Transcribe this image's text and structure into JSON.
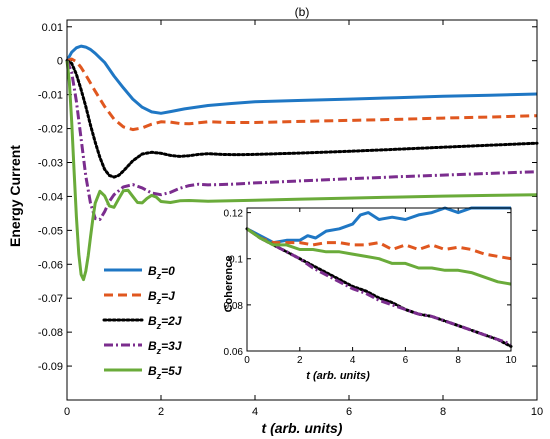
{
  "chart_data": [
    {
      "type": "line",
      "title": "(b)",
      "xlabel": "t (arb. units)",
      "ylabel": "Energy Current",
      "xlim": [
        0,
        10
      ],
      "ylim": [
        -0.1,
        0.012
      ],
      "xticks": [
        0,
        2,
        4,
        6,
        8,
        10
      ],
      "yticks": [
        0.01,
        0,
        -0.01,
        -0.02,
        -0.03,
        -0.04,
        -0.05,
        -0.06,
        -0.07,
        -0.08,
        -0.09
      ],
      "ytick_labels": [
        "0.01",
        "0",
        "-0.01",
        "-0.02",
        "-0.03",
        "-0.04",
        "-0.05",
        "-0.06",
        "-0.07",
        "-0.08",
        "-0.09"
      ],
      "grid": false,
      "legend_position": "lower-left",
      "series": [
        {
          "name_base": "B",
          "name_sub": "z",
          "name_suffix": "=0",
          "color": "#1f77c4",
          "dash": "solid",
          "x": [
            0,
            0.1,
            0.2,
            0.3,
            0.4,
            0.5,
            0.6,
            0.8,
            1.0,
            1.2,
            1.4,
            1.6,
            1.8,
            2.0,
            2.2,
            2.5,
            3,
            3.5,
            4,
            5,
            6,
            7,
            8,
            9,
            10
          ],
          "y": [
            0.0,
            0.0025,
            0.0038,
            0.0043,
            0.004,
            0.0033,
            0.0022,
            -0.0005,
            -0.0045,
            -0.008,
            -0.0113,
            -0.0137,
            -0.0151,
            -0.0155,
            -0.015,
            -0.0142,
            -0.0132,
            -0.0126,
            -0.0121,
            -0.0117,
            -0.0113,
            -0.0109,
            -0.0105,
            -0.0102,
            -0.0098
          ]
        },
        {
          "name_base": "B",
          "name_sub": "z",
          "name_suffix": "=J",
          "color": "#e0571f",
          "dash": "dashed",
          "x": [
            0,
            0.1,
            0.2,
            0.3,
            0.4,
            0.6,
            0.8,
            1.0,
            1.2,
            1.4,
            1.6,
            1.8,
            2.0,
            2.2,
            2.4,
            2.6,
            2.8,
            3,
            3.5,
            4,
            5,
            6,
            7,
            8,
            9,
            10
          ],
          "y": [
            0.0,
            0.0005,
            -0.0003,
            -0.002,
            -0.0042,
            -0.009,
            -0.0135,
            -0.0172,
            -0.0195,
            -0.0203,
            -0.0198,
            -0.0187,
            -0.018,
            -0.0181,
            -0.0185,
            -0.0186,
            -0.0183,
            -0.018,
            -0.0182,
            -0.0182,
            -0.0179,
            -0.0176,
            -0.0173,
            -0.0169,
            -0.0166,
            -0.0162
          ]
        },
        {
          "name_base": "B",
          "name_sub": "z",
          "name_suffix": "=2J",
          "color": "#000000",
          "dash": "dotted",
          "x": [
            0,
            0.1,
            0.2,
            0.3,
            0.4,
            0.5,
            0.6,
            0.7,
            0.8,
            0.9,
            1.0,
            1.1,
            1.2,
            1.4,
            1.6,
            1.8,
            2.0,
            2.2,
            2.4,
            2.6,
            2.8,
            3.0,
            3.3,
            3.6,
            4,
            5,
            6,
            7,
            8,
            9,
            10
          ],
          "y": [
            0.0,
            -0.0008,
            -0.004,
            -0.0085,
            -0.0135,
            -0.019,
            -0.024,
            -0.0285,
            -0.032,
            -0.0338,
            -0.0343,
            -0.0338,
            -0.0325,
            -0.0295,
            -0.0275,
            -0.027,
            -0.0273,
            -0.0279,
            -0.0282,
            -0.028,
            -0.0276,
            -0.0274,
            -0.0276,
            -0.0277,
            -0.0276,
            -0.0272,
            -0.0267,
            -0.0261,
            -0.0255,
            -0.0249,
            -0.0243
          ]
        },
        {
          "name_base": "B",
          "name_sub": "z",
          "name_suffix": "=3J",
          "color": "#7b2d8e",
          "dash": "dashdot",
          "x": [
            0,
            0.1,
            0.2,
            0.3,
            0.4,
            0.5,
            0.6,
            0.7,
            0.8,
            0.9,
            1.0,
            1.2,
            1.4,
            1.6,
            1.8,
            2.0,
            2.2,
            2.4,
            2.6,
            2.8,
            3.0,
            3.5,
            4,
            5,
            6,
            7,
            8,
            9,
            10
          ],
          "y": [
            0.0,
            -0.0035,
            -0.012,
            -0.023,
            -0.034,
            -0.042,
            -0.0465,
            -0.0468,
            -0.0445,
            -0.0415,
            -0.0395,
            -0.0372,
            -0.0365,
            -0.0375,
            -0.039,
            -0.0395,
            -0.0388,
            -0.0376,
            -0.0368,
            -0.0364,
            -0.0366,
            -0.0364,
            -0.036,
            -0.0354,
            -0.0348,
            -0.0342,
            -0.0337,
            -0.0332,
            -0.0327
          ]
        },
        {
          "name_base": "B",
          "name_sub": "z",
          "name_suffix": "=5J",
          "color": "#6aab3a",
          "dash": "solid",
          "x": [
            0,
            0.05,
            0.1,
            0.15,
            0.2,
            0.25,
            0.3,
            0.35,
            0.4,
            0.45,
            0.5,
            0.55,
            0.6,
            0.7,
            0.8,
            0.9,
            1.0,
            1.1,
            1.2,
            1.3,
            1.4,
            1.5,
            1.6,
            1.7,
            1.8,
            1.9,
            2.0,
            2.2,
            2.4,
            2.6,
            3.0,
            3.5,
            4,
            5,
            6,
            7,
            8,
            9,
            10
          ],
          "y": [
            0.0,
            -0.006,
            -0.018,
            -0.032,
            -0.046,
            -0.057,
            -0.063,
            -0.0645,
            -0.062,
            -0.0575,
            -0.052,
            -0.0465,
            -0.042,
            -0.0385,
            -0.0398,
            -0.0428,
            -0.0432,
            -0.0407,
            -0.0383,
            -0.0382,
            -0.04,
            -0.0418,
            -0.0419,
            -0.0406,
            -0.0397,
            -0.0402,
            -0.0415,
            -0.0418,
            -0.0413,
            -0.0412,
            -0.0414,
            -0.0413,
            -0.0411,
            -0.0408,
            -0.0405,
            -0.0402,
            -0.0399,
            -0.0397,
            -0.0395
          ]
        }
      ]
    },
    {
      "type": "line",
      "title": "",
      "xlabel": "t (arb. units)",
      "ylabel": "Coherence",
      "xlim": [
        0,
        10
      ],
      "ylim": [
        0.06,
        0.122
      ],
      "xticks": [
        0,
        2,
        4,
        6,
        8,
        10
      ],
      "yticks": [
        0.06,
        0.08,
        0.1,
        0.12
      ],
      "ytick_labels": [
        "0.06",
        "0.08",
        "0.1",
        "0.12"
      ],
      "grid": false,
      "series": [
        {
          "color": "#1f77c4",
          "dash": "solid",
          "x": [
            0,
            0.5,
            1,
            1.5,
            2,
            2.3,
            2.6,
            3,
            3.5,
            4,
            4.3,
            4.6,
            5,
            5.5,
            6,
            6.5,
            7,
            7.5,
            8,
            8.5,
            9,
            9.5,
            10
          ],
          "y": [
            0.113,
            0.11,
            0.107,
            0.108,
            0.108,
            0.11,
            0.109,
            0.112,
            0.113,
            0.115,
            0.119,
            0.12,
            0.117,
            0.118,
            0.117,
            0.119,
            0.12,
            0.122,
            0.12,
            0.122,
            0.122,
            0.122,
            0.122
          ]
        },
        {
          "color": "#e0571f",
          "dash": "dashed",
          "x": [
            0,
            0.5,
            1,
            1.5,
            2,
            2.5,
            3,
            3.5,
            4,
            4.5,
            5,
            5.5,
            6,
            6.5,
            7,
            7.5,
            8,
            8.5,
            9,
            9.5,
            10
          ],
          "y": [
            0.113,
            0.109,
            0.107,
            0.107,
            0.107,
            0.106,
            0.107,
            0.107,
            0.106,
            0.106,
            0.107,
            0.104,
            0.106,
            0.104,
            0.106,
            0.104,
            0.105,
            0.104,
            0.102,
            0.101,
            0.1
          ]
        },
        {
          "color": "#000000",
          "dash": "dotted",
          "x": [
            0,
            0.5,
            1,
            1.5,
            2,
            2.5,
            3,
            3.5,
            4,
            4.5,
            5,
            5.5,
            6,
            6.5,
            7,
            7.5,
            8,
            8.5,
            9,
            9.5,
            10
          ],
          "y": [
            0.113,
            0.109,
            0.106,
            0.103,
            0.1,
            0.097,
            0.094,
            0.091,
            0.088,
            0.086,
            0.083,
            0.081,
            0.078,
            0.076,
            0.075,
            0.073,
            0.071,
            0.069,
            0.067,
            0.065,
            0.062
          ]
        },
        {
          "color": "#7b2d8e",
          "dash": "dashdot",
          "x": [
            0,
            0.5,
            1,
            1.5,
            2,
            2.5,
            3,
            3.5,
            4,
            4.5,
            5,
            5.5,
            6,
            6.5,
            7,
            7.5,
            8,
            8.5,
            9,
            9.5,
            10
          ],
          "y": [
            0.113,
            0.109,
            0.106,
            0.103,
            0.1,
            0.096,
            0.093,
            0.09,
            0.087,
            0.085,
            0.082,
            0.08,
            0.078,
            0.076,
            0.075,
            0.073,
            0.071,
            0.069,
            0.067,
            0.065,
            0.063
          ]
        },
        {
          "color": "#6aab3a",
          "dash": "solid",
          "x": [
            0,
            0.5,
            1,
            1.5,
            2,
            2.5,
            3,
            3.5,
            4,
            4.5,
            5,
            5.5,
            6,
            6.5,
            7,
            7.5,
            8,
            8.5,
            9,
            9.5,
            10
          ],
          "y": [
            0.113,
            0.109,
            0.106,
            0.106,
            0.104,
            0.104,
            0.103,
            0.103,
            0.102,
            0.101,
            0.1,
            0.098,
            0.098,
            0.096,
            0.096,
            0.095,
            0.095,
            0.094,
            0.092,
            0.09,
            0.089
          ]
        }
      ]
    }
  ]
}
